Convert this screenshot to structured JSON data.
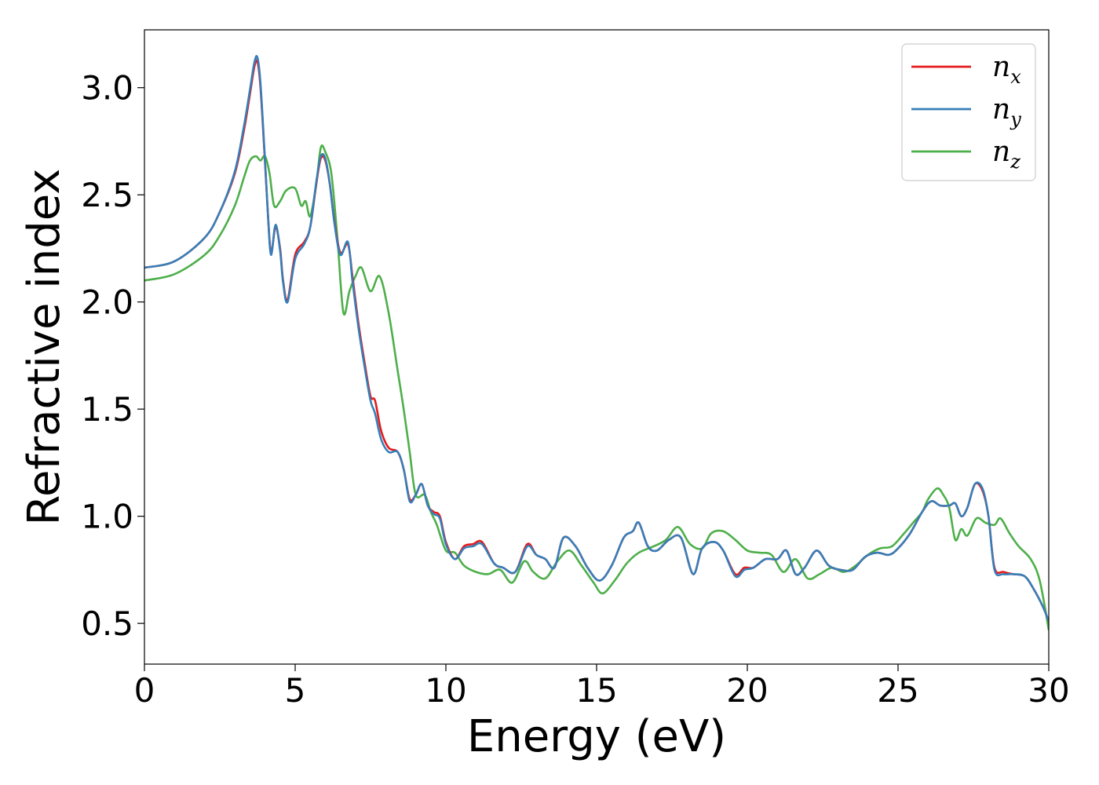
{
  "chart_data": {
    "type": "line",
    "xlabel": "Energy (eV)",
    "ylabel": "Refractive index",
    "xlim": [
      0,
      30
    ],
    "ylim": [
      0.31,
      3.27
    ],
    "xticks": [
      "0",
      "5",
      "10",
      "15",
      "20",
      "25",
      "30"
    ],
    "xtick_values": [
      0,
      5,
      10,
      15,
      20,
      25,
      30
    ],
    "yticks": [
      "0.5",
      "1.0",
      "1.5",
      "2.0",
      "2.5",
      "3.0"
    ],
    "ytick_values": [
      0.5,
      1.0,
      1.5,
      2.0,
      2.5,
      3.0
    ],
    "grid": false,
    "legend_position": "top-right",
    "series": [
      {
        "name": "n",
        "subscript": "x",
        "color": "#e41a1c",
        "x": [
          0,
          1,
          2,
          2.5,
          3,
          3.3,
          3.5,
          3.65,
          3.75,
          3.85,
          4.0,
          4.1,
          4.2,
          4.35,
          4.5,
          4.6,
          4.75,
          5.0,
          5.3,
          5.5,
          5.7,
          5.85,
          6.0,
          6.15,
          6.3,
          6.5,
          6.75,
          6.9,
          7.1,
          7.3,
          7.5,
          7.65,
          7.85,
          8.1,
          8.4,
          8.6,
          8.8,
          9.0,
          9.2,
          9.4,
          9.6,
          9.8,
          10.0,
          10.3,
          10.6,
          10.9,
          11.2,
          11.6,
          11.9,
          12.3,
          12.7,
          13.0,
          13.3,
          13.6,
          13.9,
          14.3,
          14.7,
          15.1,
          15.5,
          15.9,
          16.2,
          16.4,
          16.7,
          17.0,
          17.4,
          17.8,
          18.2,
          18.5,
          18.9,
          19.2,
          19.6,
          19.9,
          20.2,
          20.6,
          21.0,
          21.3,
          21.6,
          21.9,
          22.3,
          22.7,
          23.1,
          23.5,
          23.9,
          24.3,
          24.7,
          25.0,
          25.4,
          25.8,
          26.1,
          26.4,
          26.7,
          26.9,
          27.1,
          27.3,
          27.55,
          27.8,
          28.0,
          28.2,
          28.5,
          28.8,
          29.2,
          29.5,
          29.8,
          30.0
        ],
        "y": [
          2.16,
          2.19,
          2.3,
          2.42,
          2.6,
          2.8,
          2.97,
          3.1,
          3.12,
          3.0,
          2.65,
          2.4,
          2.23,
          2.35,
          2.25,
          2.1,
          2.01,
          2.22,
          2.28,
          2.35,
          2.55,
          2.67,
          2.66,
          2.55,
          2.38,
          2.23,
          2.27,
          2.12,
          1.9,
          1.72,
          1.56,
          1.54,
          1.4,
          1.32,
          1.3,
          1.22,
          1.08,
          1.1,
          1.15,
          1.05,
          1.02,
          1.0,
          0.88,
          0.8,
          0.86,
          0.87,
          0.88,
          0.78,
          0.76,
          0.74,
          0.87,
          0.82,
          0.8,
          0.76,
          0.9,
          0.86,
          0.76,
          0.7,
          0.77,
          0.9,
          0.93,
          0.97,
          0.86,
          0.84,
          0.89,
          0.9,
          0.73,
          0.85,
          0.88,
          0.84,
          0.73,
          0.76,
          0.76,
          0.8,
          0.8,
          0.84,
          0.73,
          0.76,
          0.84,
          0.77,
          0.75,
          0.75,
          0.81,
          0.83,
          0.82,
          0.85,
          0.92,
          1.02,
          1.07,
          1.05,
          1.05,
          1.06,
          1.0,
          1.04,
          1.15,
          1.12,
          1.0,
          0.76,
          0.74,
          0.73,
          0.72,
          0.66,
          0.58,
          0.51
        ]
      },
      {
        "name": "n",
        "subscript": "y",
        "color": "#377eb8",
        "x": [
          0,
          1,
          2,
          2.5,
          3,
          3.3,
          3.5,
          3.65,
          3.75,
          3.85,
          4.0,
          4.1,
          4.2,
          4.35,
          4.5,
          4.6,
          4.75,
          5.0,
          5.3,
          5.5,
          5.7,
          5.85,
          6.0,
          6.15,
          6.3,
          6.5,
          6.75,
          6.9,
          7.1,
          7.3,
          7.5,
          7.65,
          7.85,
          8.1,
          8.4,
          8.6,
          8.8,
          9.0,
          9.2,
          9.4,
          9.6,
          9.8,
          10.0,
          10.3,
          10.6,
          10.9,
          11.2,
          11.6,
          11.9,
          12.3,
          12.7,
          13.0,
          13.3,
          13.6,
          13.9,
          14.3,
          14.7,
          15.1,
          15.5,
          15.9,
          16.2,
          16.4,
          16.7,
          17.0,
          17.4,
          17.8,
          18.2,
          18.5,
          18.9,
          19.2,
          19.6,
          19.9,
          20.2,
          20.6,
          21.0,
          21.3,
          21.6,
          21.9,
          22.3,
          22.7,
          23.1,
          23.5,
          23.9,
          24.3,
          24.7,
          25.0,
          25.4,
          25.8,
          26.1,
          26.4,
          26.7,
          26.9,
          27.1,
          27.3,
          27.55,
          27.8,
          28.0,
          28.2,
          28.5,
          28.8,
          29.2,
          29.5,
          29.8,
          30.0
        ],
        "y": [
          2.16,
          2.19,
          2.3,
          2.42,
          2.61,
          2.82,
          2.99,
          3.12,
          3.14,
          3.02,
          2.66,
          2.4,
          2.22,
          2.36,
          2.24,
          2.09,
          2.0,
          2.2,
          2.27,
          2.35,
          2.56,
          2.68,
          2.67,
          2.55,
          2.37,
          2.22,
          2.28,
          2.1,
          1.88,
          1.7,
          1.54,
          1.48,
          1.36,
          1.3,
          1.3,
          1.22,
          1.07,
          1.1,
          1.15,
          1.05,
          1.01,
          0.99,
          0.87,
          0.8,
          0.85,
          0.86,
          0.87,
          0.78,
          0.76,
          0.74,
          0.86,
          0.82,
          0.8,
          0.76,
          0.9,
          0.86,
          0.76,
          0.7,
          0.77,
          0.9,
          0.93,
          0.97,
          0.86,
          0.84,
          0.89,
          0.9,
          0.73,
          0.85,
          0.88,
          0.84,
          0.72,
          0.75,
          0.76,
          0.8,
          0.8,
          0.84,
          0.73,
          0.76,
          0.84,
          0.77,
          0.75,
          0.75,
          0.81,
          0.83,
          0.82,
          0.85,
          0.92,
          1.02,
          1.07,
          1.05,
          1.05,
          1.06,
          1.0,
          1.04,
          1.15,
          1.13,
          1.0,
          0.75,
          0.73,
          0.73,
          0.72,
          0.66,
          0.58,
          0.51
        ]
      },
      {
        "name": "n",
        "subscript": "z",
        "color": "#4daf4a",
        "x": [
          0,
          1,
          2,
          2.5,
          3,
          3.3,
          3.5,
          3.7,
          3.85,
          4.0,
          4.15,
          4.3,
          4.5,
          4.7,
          5.0,
          5.2,
          5.35,
          5.5,
          5.7,
          5.85,
          6.0,
          6.2,
          6.4,
          6.6,
          6.8,
          7.0,
          7.2,
          7.5,
          7.8,
          8.1,
          8.4,
          8.6,
          8.8,
          9.0,
          9.3,
          9.5,
          9.7,
          10.0,
          10.3,
          10.6,
          11.0,
          11.4,
          11.8,
          12.2,
          12.6,
          12.9,
          13.3,
          13.7,
          14.1,
          14.5,
          14.9,
          15.2,
          15.6,
          16.0,
          16.4,
          16.9,
          17.3,
          17.7,
          18.1,
          18.5,
          18.8,
          19.2,
          19.6,
          20.0,
          20.4,
          20.8,
          21.2,
          21.6,
          22.0,
          22.4,
          22.8,
          23.2,
          23.6,
          24.0,
          24.4,
          24.8,
          25.2,
          25.5,
          25.8,
          26.0,
          26.3,
          26.5,
          26.7,
          26.9,
          27.1,
          27.3,
          27.6,
          27.9,
          28.2,
          28.4,
          28.7,
          29.0,
          29.4,
          29.7,
          30.0
        ],
        "y": [
          2.1,
          2.13,
          2.22,
          2.31,
          2.45,
          2.58,
          2.66,
          2.68,
          2.66,
          2.68,
          2.6,
          2.45,
          2.47,
          2.52,
          2.53,
          2.45,
          2.47,
          2.4,
          2.55,
          2.72,
          2.7,
          2.6,
          2.3,
          1.95,
          2.05,
          2.12,
          2.16,
          2.05,
          2.12,
          1.95,
          1.68,
          1.5,
          1.3,
          1.1,
          1.1,
          1.02,
          0.96,
          0.84,
          0.83,
          0.77,
          0.74,
          0.73,
          0.75,
          0.69,
          0.79,
          0.74,
          0.71,
          0.79,
          0.84,
          0.77,
          0.69,
          0.64,
          0.7,
          0.78,
          0.83,
          0.86,
          0.89,
          0.95,
          0.87,
          0.85,
          0.92,
          0.93,
          0.89,
          0.84,
          0.83,
          0.82,
          0.74,
          0.8,
          0.71,
          0.73,
          0.76,
          0.74,
          0.77,
          0.82,
          0.85,
          0.86,
          0.92,
          0.97,
          1.02,
          1.08,
          1.13,
          1.1,
          1.04,
          0.89,
          0.94,
          0.91,
          0.99,
          0.97,
          0.96,
          0.99,
          0.92,
          0.86,
          0.8,
          0.7,
          0.47
        ]
      }
    ]
  }
}
